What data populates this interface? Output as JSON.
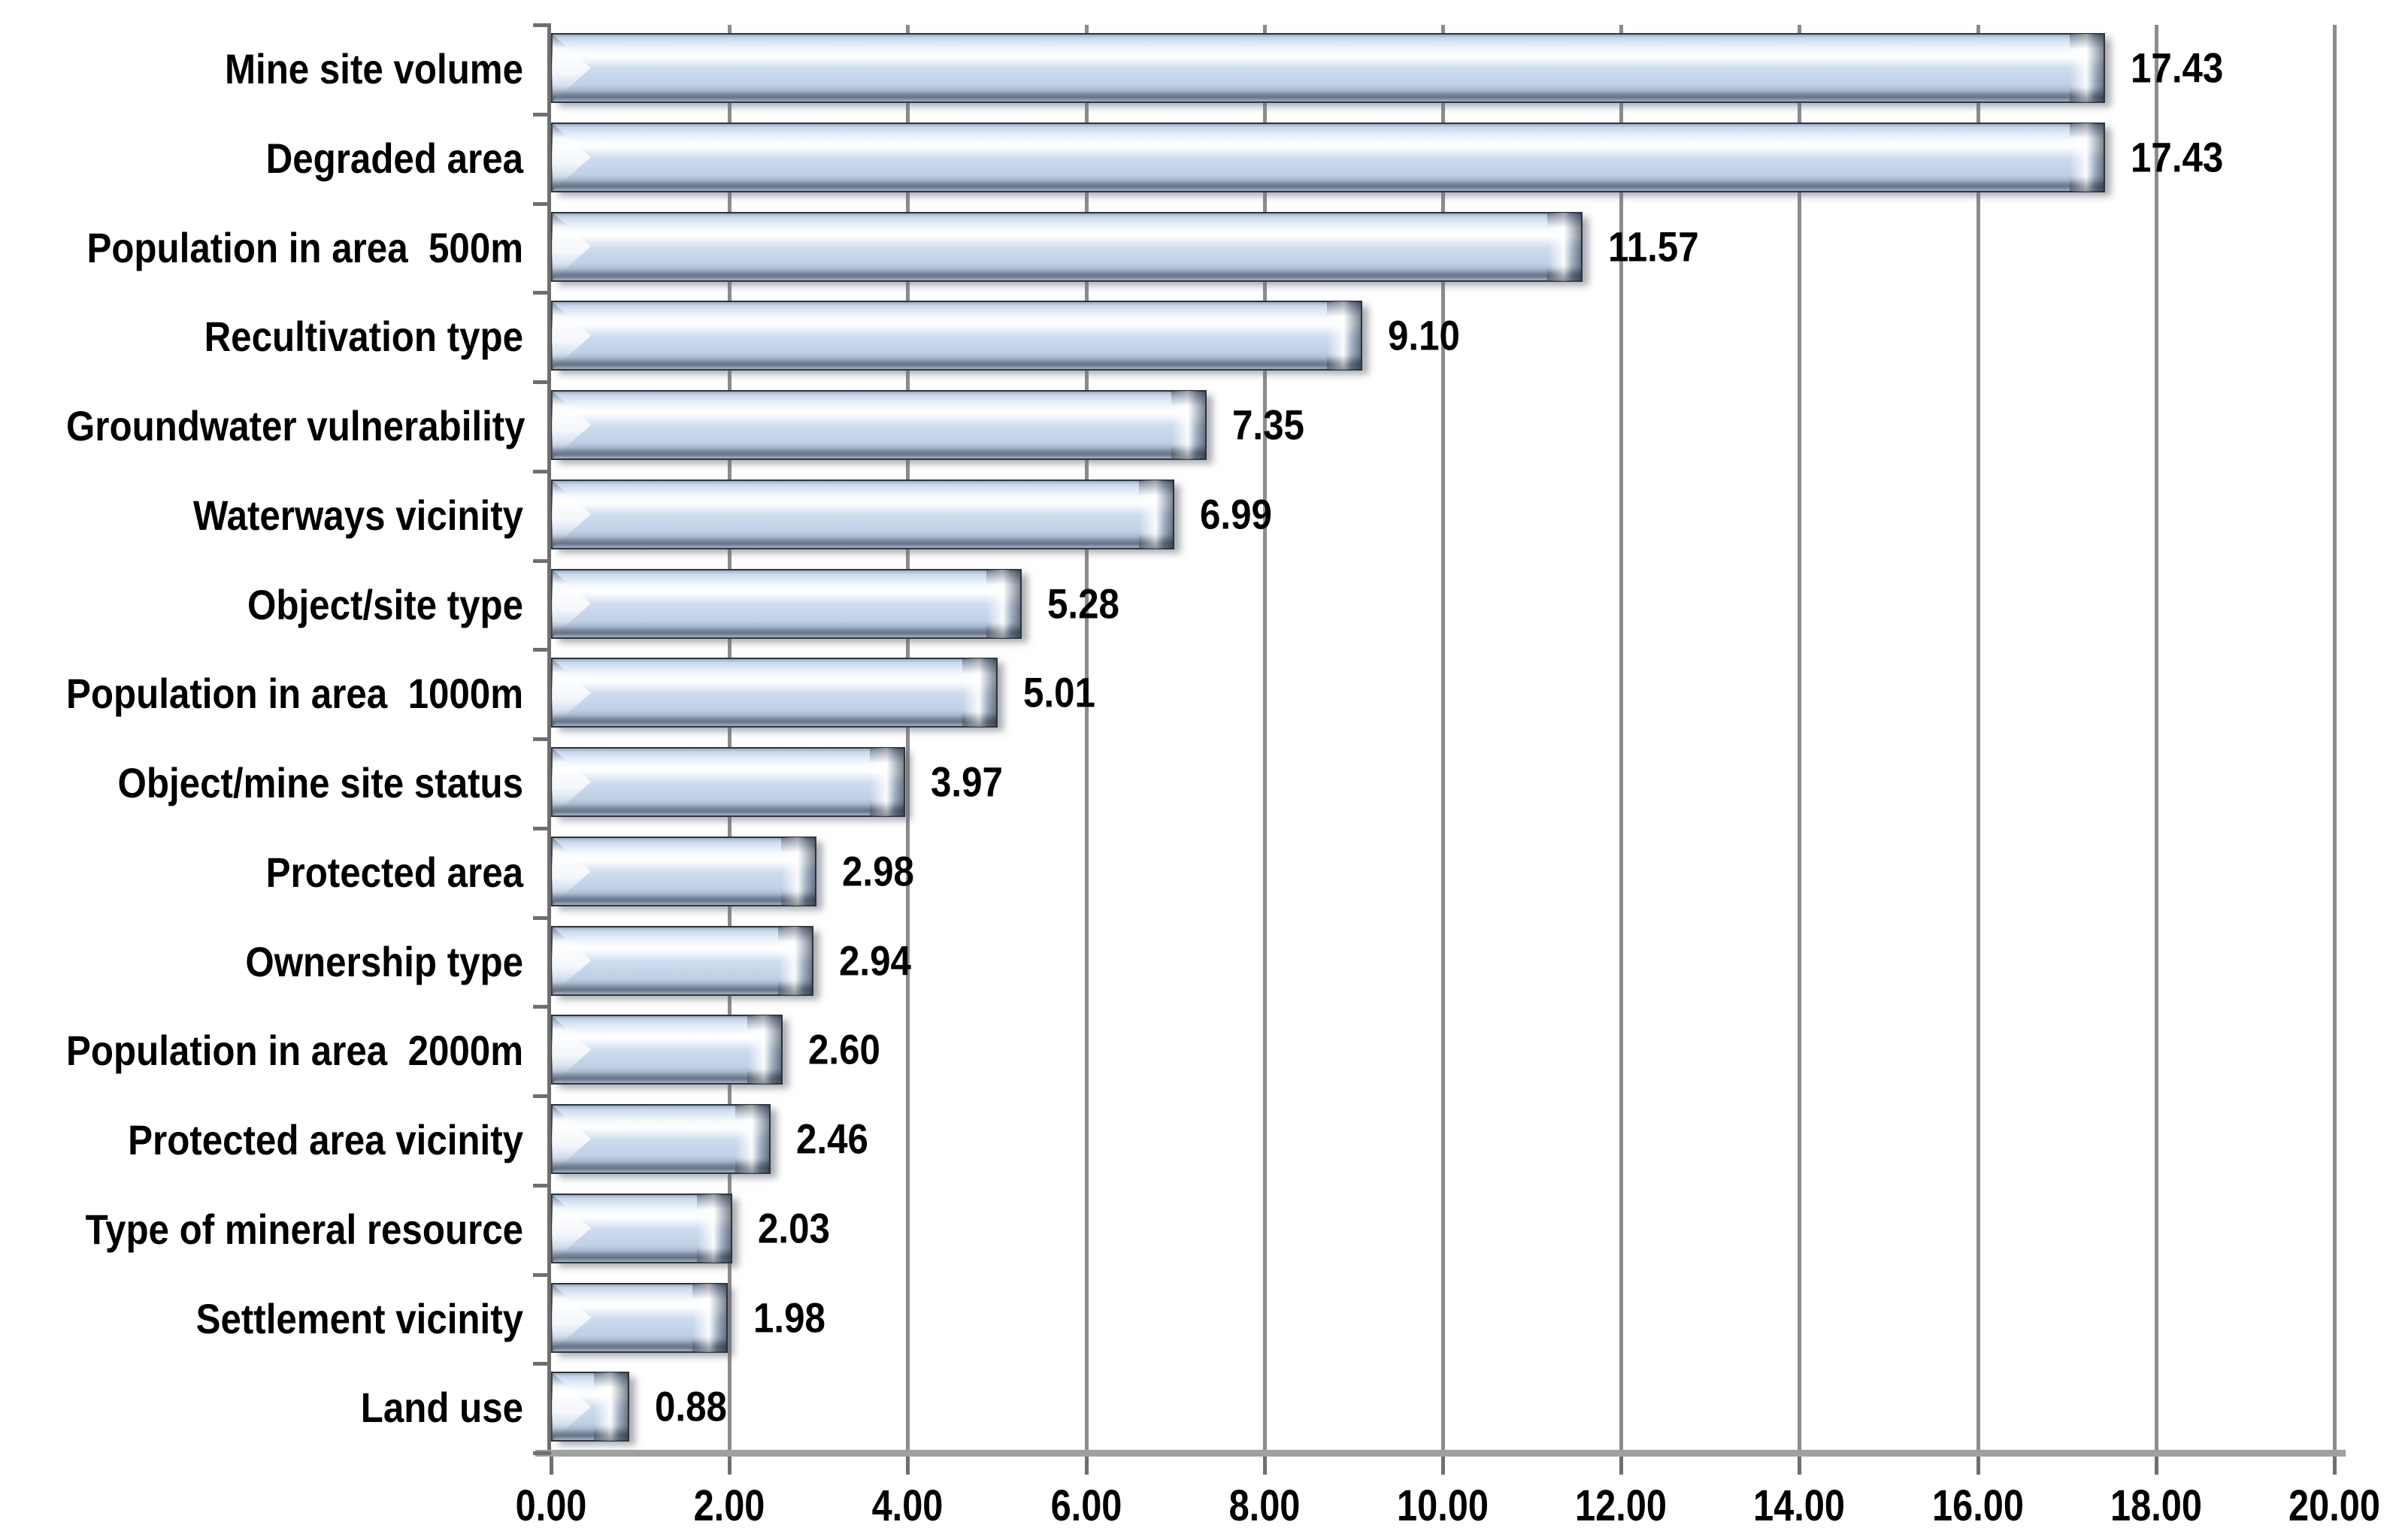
{
  "chart_data": {
    "type": "bar",
    "orientation": "horizontal",
    "title": "",
    "subtitle": "",
    "xlabel": "",
    "ylabel": "",
    "xlim": [
      0,
      20
    ],
    "x_tick_step": 2,
    "x_tick_labels": [
      "0.00",
      "2.00",
      "4.00",
      "6.00",
      "8.00",
      "10.00",
      "12.00",
      "14.00",
      "16.00",
      "18.00",
      "20.00"
    ],
    "grid": true,
    "legend": false,
    "bar_style": "glossy-3d-bevel",
    "categories": [
      "Mine site volume",
      "Degraded area",
      "Population in area  500m",
      "Recultivation type",
      "Groundwater vulnerability",
      "Waterways vicinity",
      "Object/site type",
      "Population in area  1000m",
      "Object/mine site status",
      "Protected area",
      "Ownership type",
      "Population in area  2000m",
      "Protected area vicinity",
      "Type of mineral resource",
      "Settlement vicinity",
      "Land use"
    ],
    "values": [
      17.43,
      17.43,
      11.57,
      9.1,
      7.35,
      6.99,
      5.28,
      5.01,
      3.97,
      2.98,
      2.94,
      2.6,
      2.46,
      2.03,
      1.98,
      0.88
    ],
    "value_labels": [
      "17.43",
      "17.43",
      "11.57",
      "9.10",
      "7.35",
      "6.99",
      "5.28",
      "5.01",
      "3.97",
      "2.98",
      "2.94",
      "2.60",
      "2.46",
      "2.03",
      "1.98",
      "0.88"
    ],
    "colors": {
      "background": "#ffffff",
      "bar_fill_base": "#c6d5ea",
      "bar_gloss": "#ffffff",
      "bar_dark_band": "#67758a",
      "bar_border": "#2e353d",
      "gridline": "#8c8c8c",
      "category_axis_line": "#6f6f6f",
      "value_axis_line": "#a0a0a0",
      "label_text": "#000000"
    }
  }
}
